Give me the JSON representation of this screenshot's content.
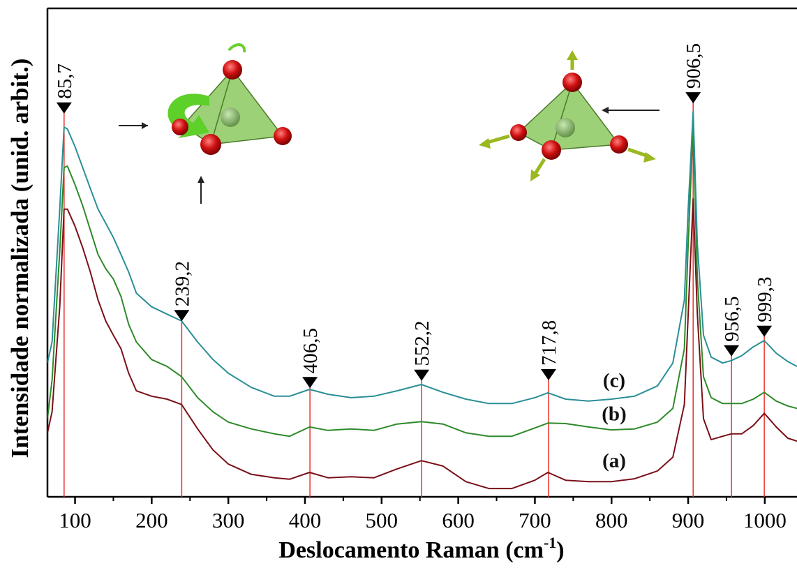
{
  "chart_data": {
    "type": "line",
    "x_label": [
      "Deslocamento Raman (cm",
      "-1",
      ")"
    ],
    "y_label": "Intensidade normalizada (unid. arbit.)",
    "x": [
      64,
      70,
      80,
      85.7,
      90,
      100,
      110,
      120,
      130,
      140,
      150,
      160,
      170,
      180,
      200,
      220,
      239,
      260,
      280,
      300,
      330,
      360,
      380,
      406,
      430,
      460,
      490,
      520,
      552,
      580,
      610,
      640,
      670,
      700,
      717,
      740,
      770,
      800,
      830,
      860,
      880,
      895,
      900,
      906.5,
      912,
      920,
      930,
      945,
      956.5,
      970,
      985,
      999.3,
      1015,
      1030,
      1042
    ],
    "series": [
      {
        "name": "(a)",
        "color": "#7a1018",
        "values": [
          13.1,
          17.4,
          38.9,
          58.9,
          58.9,
          55.4,
          51,
          46,
          40.3,
          36,
          33.1,
          30.3,
          25.3,
          21.7,
          20.6,
          20,
          18.9,
          13.9,
          9.6,
          6.7,
          4.6,
          3.9,
          3.6,
          5,
          3.9,
          4.1,
          3.9,
          5.7,
          7.4,
          6.3,
          3.1,
          1.7,
          1.7,
          3.4,
          5,
          3.4,
          3.1,
          3.1,
          3.7,
          5.3,
          8.1,
          18.9,
          37.4,
          61,
          37.4,
          16,
          11.7,
          12.4,
          12.9,
          12.9,
          14.6,
          17.1,
          14.3,
          12,
          11.4
        ]
      },
      {
        "name": "(b)",
        "color": "#2e8a2a",
        "values": [
          16,
          23.9,
          50.3,
          67.4,
          67.7,
          63.9,
          59.6,
          54.6,
          49.6,
          46.7,
          44.6,
          41,
          35.3,
          31.7,
          28.1,
          26.7,
          24.6,
          20.3,
          17.4,
          15.3,
          13.9,
          12.9,
          12.4,
          14.3,
          13.6,
          13.9,
          13.6,
          14.9,
          15.4,
          14.9,
          13.1,
          12.4,
          12.4,
          14.1,
          15.1,
          15,
          14.3,
          13.7,
          13.9,
          15.3,
          18.1,
          30.3,
          51.7,
          76,
          44.6,
          24.6,
          20.3,
          19.1,
          19.1,
          19.1,
          20,
          21.4,
          19.6,
          18.6,
          18.1
        ]
      },
      {
        "name": "(c)",
        "color": "#2a8f96",
        "values": [
          27.4,
          31.7,
          58.9,
          75.7,
          75.3,
          71.7,
          67.4,
          63.1,
          58.9,
          56,
          53.1,
          49.6,
          46,
          41.7,
          38.9,
          37.4,
          36,
          31.7,
          28.1,
          25.3,
          22.4,
          20.6,
          20.6,
          22,
          21,
          20.3,
          20.6,
          21.7,
          23,
          21.4,
          20,
          19.1,
          19.1,
          20.3,
          21.3,
          20,
          19.6,
          20,
          20.6,
          22.7,
          27.4,
          40.3,
          58.9,
          78.9,
          51.7,
          33.1,
          28.6,
          27.4,
          27.9,
          28.9,
          30.7,
          32,
          29.4,
          27.7,
          26.7
        ]
      }
    ],
    "peaks": [
      {
        "x": 85.7,
        "label": "85,7",
        "y": 79.6
      },
      {
        "x": 239.2,
        "label": "239,2",
        "y": 37.1
      },
      {
        "x": 406.5,
        "label": "406,5",
        "y": 23.4
      },
      {
        "x": 552.2,
        "label": "552,2",
        "y": 24.9
      },
      {
        "x": 717.8,
        "label": "717,8",
        "y": 25
      },
      {
        "x": 906.5,
        "label": "906,5",
        "y": 81.7
      },
      {
        "x": 956.5,
        "label": "956,5",
        "y": 29.9
      },
      {
        "x": 999.3,
        "label": "999,3",
        "y": 33.9
      }
    ],
    "xlim": [
      64,
      1042
    ],
    "ylim": [
      0,
      100
    ],
    "xticks": [
      100,
      200,
      300,
      400,
      500,
      600,
      700,
      800,
      900,
      1000
    ],
    "xminor": [
      150,
      250,
      350,
      450,
      550,
      650,
      750,
      850,
      950
    ]
  }
}
